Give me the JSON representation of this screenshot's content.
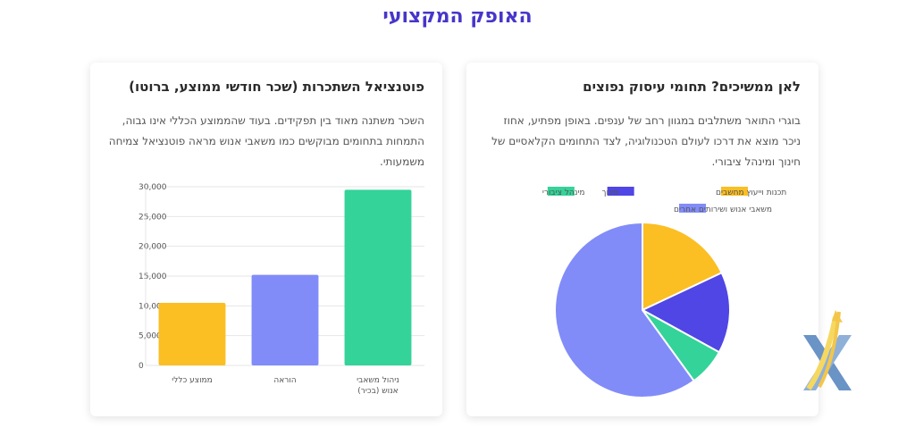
{
  "page_title": "האופק המקצועי",
  "right_card": {
    "title": "לאן ממשיכים? תחומי עיסוק נפוצים",
    "text": "בוגרי התואר משתלבים במגוון רחב של ענפים. באופן מפתיע, אחוז ניכר מוצא את דרכו לעולם הטכנולוגיה, לצד התחומים הקלאסיים של חינוך ומינהל ציבורי."
  },
  "left_card": {
    "title": "פוטנציאל השתכרות (שכר חודשי ממוצע, ברוטו)",
    "text": "השכר משתנה מאוד בין תפקידים. בעוד שהממוצע הכללי אינו גבוה, התמחות בתחומים מבוקשים כמו משאבי אנוש מראה פוטנציאל צמיחה משמעותי."
  },
  "chart_data": [
    {
      "type": "pie",
      "labels": [
        "תכנות וייעוץ מחשבים",
        "חינוך",
        "מינהל ציבורי",
        "משאבי אנוש ושירותים אחרים"
      ],
      "values": [
        18,
        15,
        7,
        60
      ],
      "colors": [
        "#fbbf24",
        "#4f46e5",
        "#34d399",
        "#818cf8"
      ],
      "legend": "top"
    },
    {
      "type": "bar",
      "categories": [
        [
          "ממוצע כללי"
        ],
        [
          "הוראה"
        ],
        [
          "ניהול משאבי",
          "אנוש (בכיר)"
        ]
      ],
      "values": [
        10500,
        15200,
        29500
      ],
      "colors": [
        "#fbbf24",
        "#818cf8",
        "#34d399"
      ],
      "ylim": [
        0,
        30000
      ],
      "yticks": [
        0,
        5000,
        10000,
        15000,
        20000,
        25000,
        30000
      ],
      "ytick_labels": [
        "0",
        "5,000",
        "10,000",
        "15,000",
        "20,000",
        "25,000",
        "30,000"
      ],
      "grid": true
    }
  ]
}
